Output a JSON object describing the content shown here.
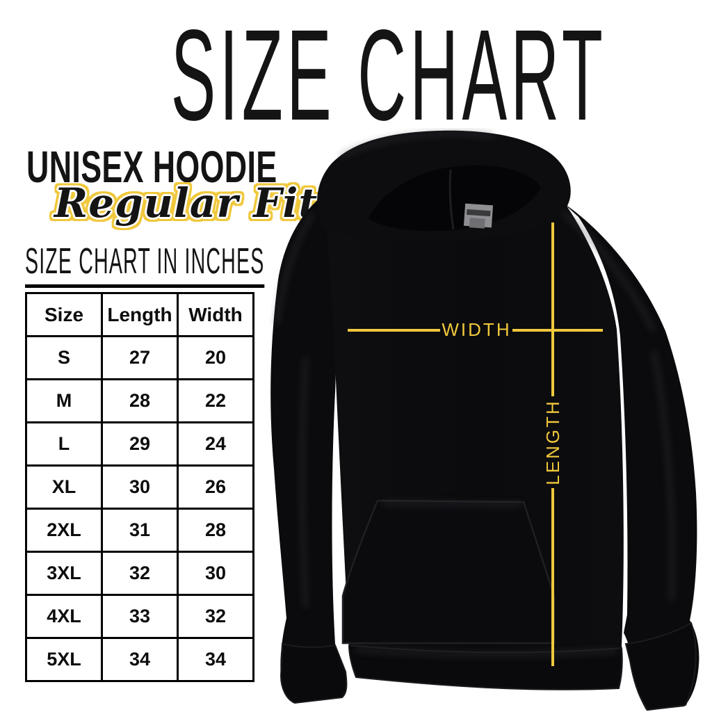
{
  "title": "SIZE CHART",
  "product": {
    "name": "UNISEX HOODIE",
    "fit": "Regular Fit",
    "table_heading": "SIZE CHART IN INCHES"
  },
  "size_table": {
    "columns": [
      "Size",
      "Length",
      "Width"
    ],
    "rows": [
      [
        "S",
        "27",
        "20"
      ],
      [
        "M",
        "28",
        "22"
      ],
      [
        "L",
        "29",
        "24"
      ],
      [
        "XL",
        "30",
        "26"
      ],
      [
        "2XL",
        "31",
        "28"
      ],
      [
        "3XL",
        "32",
        "30"
      ],
      [
        "4XL",
        "33",
        "32"
      ],
      [
        "5XL",
        "34",
        "34"
      ]
    ],
    "units": "inches"
  },
  "diagram": {
    "garment": "black unisex pullover hoodie, front view",
    "width_label": "WIDTH",
    "length_label": "LENGTH"
  },
  "colors": {
    "accent_yellow": "#F0C83C",
    "ink": "#000000",
    "hoodie_black": "#0c0c0e",
    "background": "#ffffff"
  }
}
